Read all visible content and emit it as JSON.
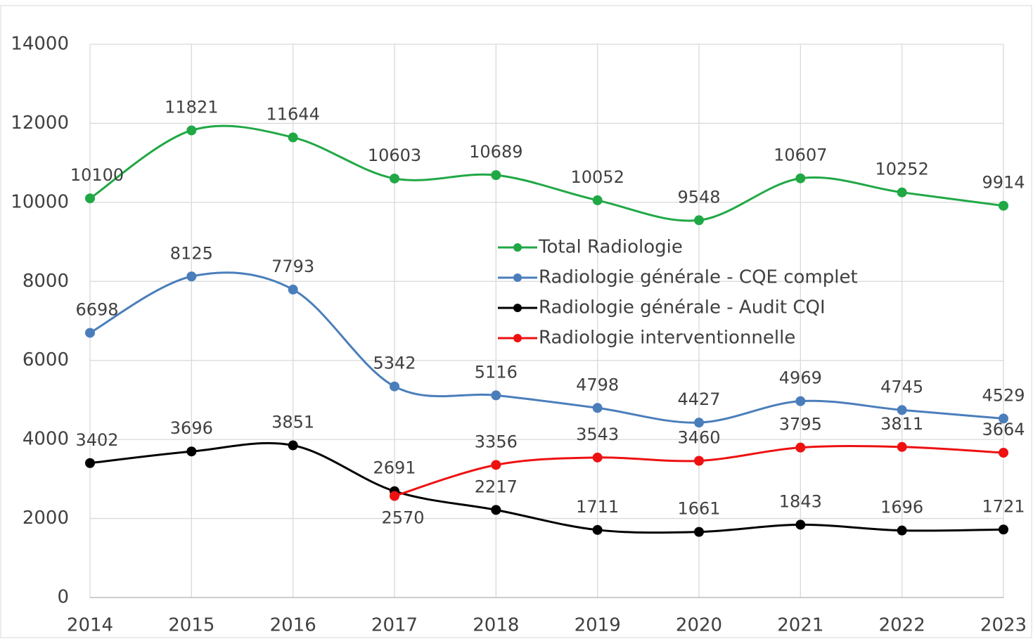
{
  "chart_data": {
    "type": "line",
    "categories": [
      "2014",
      "2015",
      "2016",
      "2017",
      "2018",
      "2019",
      "2020",
      "2021",
      "2022",
      "2023"
    ],
    "series": [
      {
        "name": "Total Radiologie",
        "color": "#20a845",
        "values": [
          10100,
          11821,
          11644,
          10603,
          10689,
          10052,
          9548,
          10607,
          10252,
          9914
        ]
      },
      {
        "name": "Radiologie générale - CQE complet",
        "color": "#4a7ebb",
        "values": [
          6698,
          8125,
          7793,
          5342,
          5116,
          4798,
          4427,
          4969,
          4745,
          4529
        ]
      },
      {
        "name": "Radiologie générale - Audit CQI",
        "color": "#000000",
        "values": [
          3402,
          3696,
          3851,
          2691,
          2217,
          1711,
          1661,
          1843,
          1696,
          1721
        ]
      },
      {
        "name": "Radiologie interventionnelle",
        "color": "#ee1111",
        "values": [
          null,
          null,
          null,
          2570,
          3356,
          3543,
          3460,
          3795,
          3811,
          3664
        ]
      }
    ],
    "ylim": [
      0,
      14000
    ],
    "yticks": [
      0,
      2000,
      4000,
      6000,
      8000,
      10000,
      12000,
      14000
    ],
    "grid": true,
    "smooth": true
  }
}
